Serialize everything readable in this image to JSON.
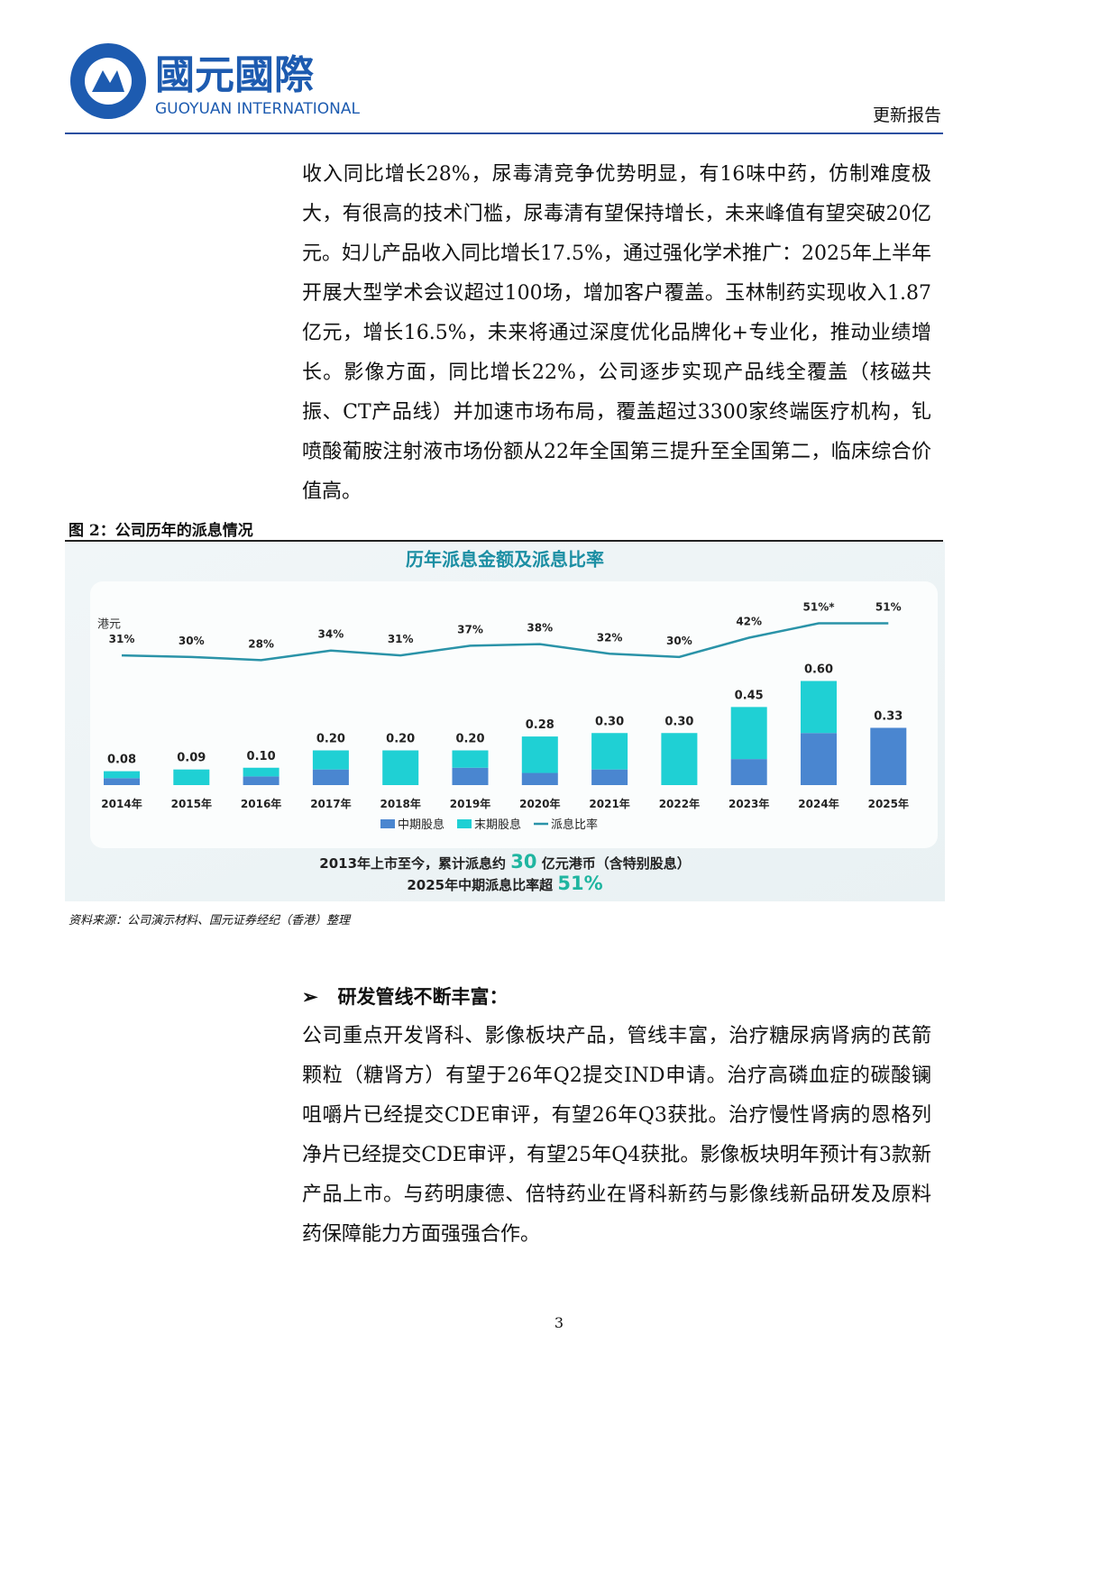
{
  "header": {
    "logo_cn": "國元國際",
    "logo_en": "GUOYUAN INTERNATIONAL",
    "report_type": "更新报告"
  },
  "paragraphs": [
    "收入同比增长28%，尿毒清竞争优势明显，有16味中药，仿制难度极大，有很高的技术门槛，尿毒清有望保持增长，未来峰值有望突破20亿元。妇儿产品收入同比增长17.5%，通过强化学术推广：2025年上半年开展大型学术会议超过100场，增加客户覆盖。玉林制药实现收入1.87亿元，增长16.5%，未来将通过深度优化品牌化+专业化，推动业绩增长。影像方面，同比增长22%，公司逐步实现产品线全覆盖（核磁共振、CT产品线）并加速市场布局，覆盖超过3300家终端医疗机构，钆喷酸葡胺注射液市场份额从22年全国第三提升至全国第二，临床综合价值高。"
  ],
  "figure": {
    "caption": "图 2：公司历年的派息情况",
    "source": "资料来源：公司演示材料、国元证券经纪（香港）整理"
  },
  "chart_data": {
    "type": "bar",
    "title": "历年派息金额及派息比率",
    "y_unit": "港元",
    "categories": [
      "2014年",
      "2015年",
      "2016年",
      "2017年",
      "2018年",
      "2019年",
      "2020年",
      "2021年",
      "2022年",
      "2023年",
      "2024年",
      "2025年"
    ],
    "series": [
      {
        "name": "中期股息",
        "color": "#4a86d0",
        "values": [
          0.04,
          0,
          0.05,
          0.09,
          0,
          0.1,
          0.07,
          0.09,
          0,
          0.15,
          0.3,
          0.33
        ]
      },
      {
        "name": "末期股息",
        "color": "#1fd0d4",
        "values": [
          0.04,
          0.09,
          0.05,
          0.11,
          0.2,
          0.1,
          0.21,
          0.21,
          0.3,
          0.3,
          0.3,
          null
        ]
      },
      {
        "name": "派息比率",
        "type": "line",
        "axis": "y2",
        "color": "#2a93a8",
        "values": [
          31,
          30,
          28,
          34,
          31,
          37,
          38,
          32,
          30,
          42,
          51,
          51
        ],
        "value_labels": [
          "31%",
          "30%",
          "28%",
          "34%",
          "31%",
          "37%",
          "38%",
          "32%",
          "30%",
          "42%",
          "51%*",
          "51%"
        ]
      }
    ],
    "total_labels": [
      "0.08",
      "0.09",
      "0.10",
      "0.20",
      "0.20",
      "0.20",
      "0.28",
      "0.30",
      "0.30",
      "0.45",
      "0.60",
      "0.33"
    ],
    "ylim": [
      0,
      1.2
    ],
    "y2lim": [
      -50,
      80
    ],
    "stacked": true,
    "notes": [
      [
        "2013年上市至今，累计派息约 ",
        "30",
        " 亿元港币（含特别股息）"
      ],
      [
        "2025年中期派息比率超 ",
        "51%"
      ]
    ]
  },
  "section": {
    "heading": "研发管线不断丰富：",
    "paragraphs": [
      "公司重点开发肾科、影像板块产品，管线丰富，治疗糖尿病肾病的芪箭颗粒（糖肾方）有望于26年Q2提交IND申请。治疗高磷血症的碳酸镧咀嚼片已经提交CDE审评，有望26年Q3获批。治疗慢性肾病的恩格列净片已经提交CDE审评，有望25年Q4获批。影像板块明年预计有3款新产品上市。与药明康德、倍特药业在肾科新药与影像线新品研发及原料药保障能力方面强强合作。"
    ]
  },
  "page_number": "3"
}
